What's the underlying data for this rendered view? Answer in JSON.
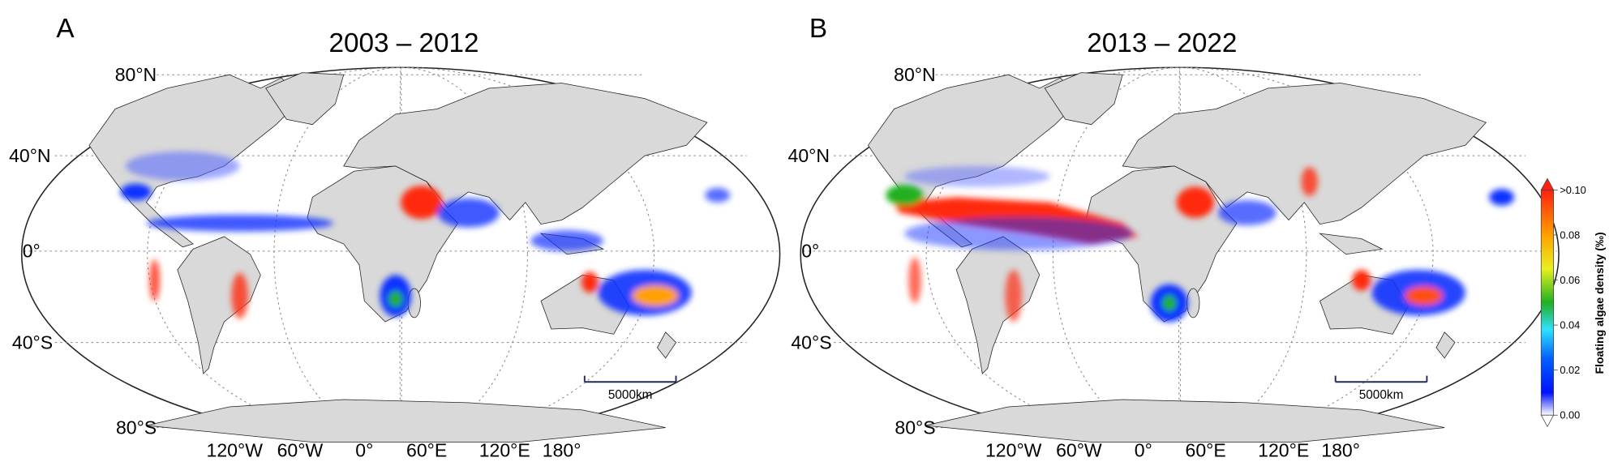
{
  "panels": [
    {
      "letter": "A",
      "title": "2003 – 2012",
      "lat_labels": [
        "80°N",
        "40°N",
        "0°",
        "40°S",
        "80°S"
      ],
      "lon_labels": [
        "120°W",
        "60°W",
        "0°",
        "60°E",
        "120°E",
        "180°"
      ],
      "scale_bar": "5000km"
    },
    {
      "letter": "B",
      "title": "2013 – 2022",
      "lat_labels": [
        "80°N",
        "40°N",
        "0°",
        "40°S",
        "80°S"
      ],
      "lon_labels": [
        "120°W",
        "60°W",
        "0°",
        "60°E",
        "120°E",
        "180°"
      ],
      "scale_bar": "5000km"
    }
  ],
  "colorbar": {
    "label": "Floating algae density (‰)",
    "lim": [
      0,
      0.1
    ],
    "ticks": [
      {
        "value": 0,
        "label": "0.00"
      },
      {
        "value": 0.02,
        "label": "0.02"
      },
      {
        "value": 0.04,
        "label": "0.04"
      },
      {
        "value": 0.06,
        "label": "0.06"
      },
      {
        "value": 0.08,
        "label": "0.08"
      },
      {
        "value": 0.1,
        "label": ">0.10"
      }
    ]
  }
}
